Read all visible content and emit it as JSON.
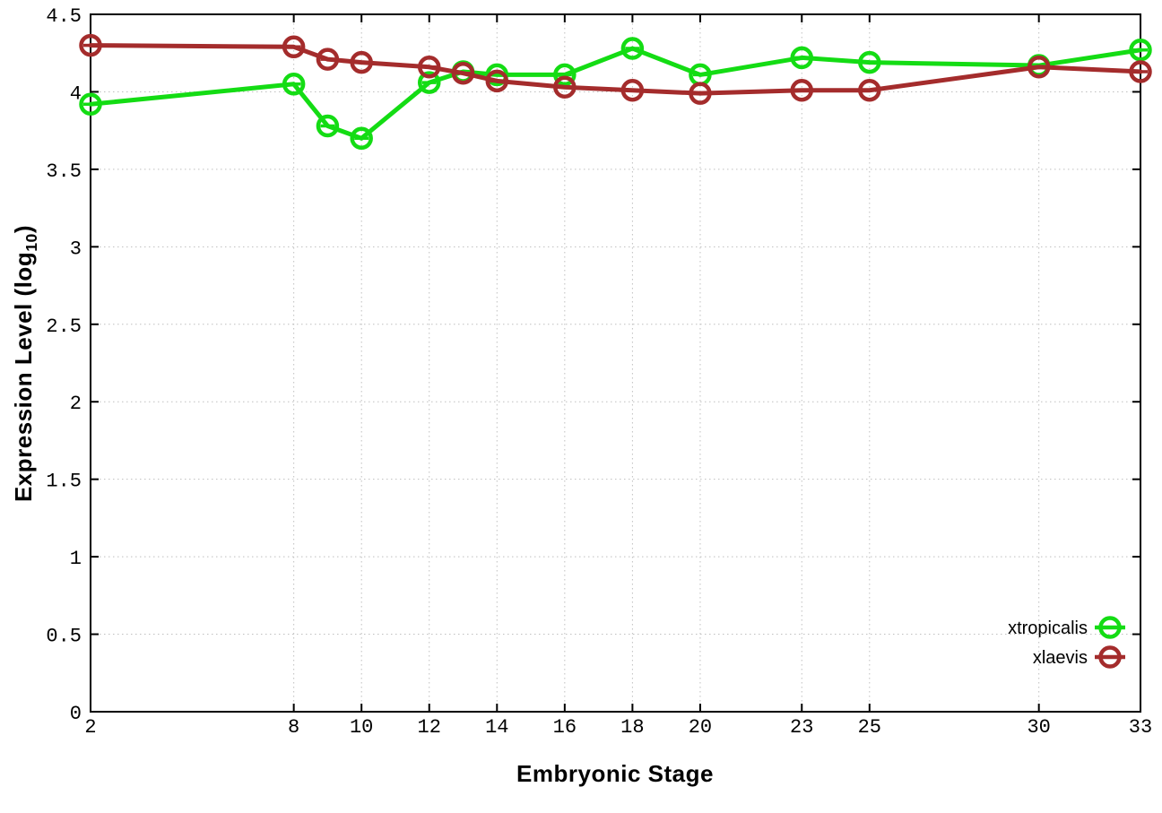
{
  "chart_data": {
    "type": "line",
    "title": "",
    "xlabel": "Embryonic Stage",
    "ylabel": "Expression Level (log10)",
    "ylabel_parts": {
      "main": "Expression Level (log",
      "sub": "10",
      "close": ")"
    },
    "x": [
      2,
      8,
      9,
      10,
      12,
      13,
      14,
      16,
      18,
      20,
      23,
      25,
      30,
      33
    ],
    "series": [
      {
        "name": "xtropicalis",
        "color": "#14dc14",
        "values": [
          3.92,
          4.05,
          3.78,
          3.7,
          4.06,
          4.13,
          4.11,
          4.11,
          4.28,
          4.11,
          4.22,
          4.19,
          4.17,
          4.27
        ]
      },
      {
        "name": "xlaevis",
        "color": "#a42c2c",
        "values": [
          4.3,
          4.29,
          4.21,
          4.19,
          4.16,
          4.12,
          4.07,
          4.03,
          4.01,
          3.99,
          4.01,
          4.01,
          4.16,
          4.13
        ]
      }
    ],
    "xlim": [
      2,
      33
    ],
    "ylim": [
      0,
      4.5
    ],
    "xticks": {
      "values": [
        2,
        8,
        10,
        12,
        14,
        16,
        18,
        20,
        23,
        25,
        30,
        33
      ],
      "labels": [
        "2",
        "8",
        "10",
        "12",
        "14",
        "16",
        "18",
        "20",
        "23",
        "25",
        "30",
        "33"
      ]
    },
    "yticks": {
      "values": [
        0,
        0.5,
        1,
        1.5,
        2,
        2.5,
        3,
        3.5,
        4,
        4.5
      ],
      "labels": [
        "0",
        "0.5",
        "1",
        "1.5",
        "2",
        "2.5",
        "3",
        "3.5",
        "4",
        "4.5"
      ]
    },
    "grid": true,
    "legend_position": "inside-bottom-right",
    "marker_style": "open-circle-errorbar",
    "colors": {
      "grid": "#bfbfbf",
      "axis": "#000000",
      "background": "#ffffff"
    }
  }
}
